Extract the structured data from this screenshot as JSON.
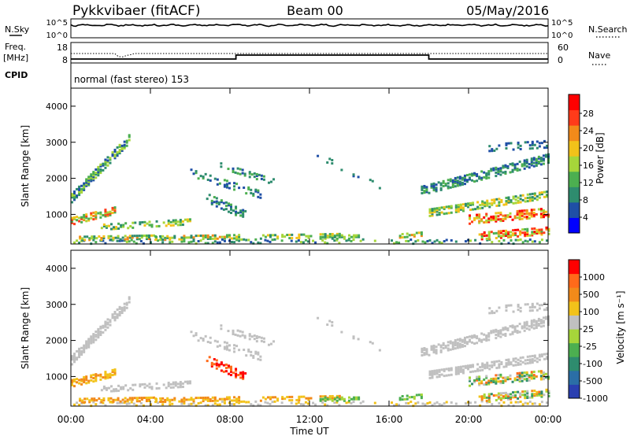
{
  "header": {
    "station": "Pykkvibaer (fitACF)",
    "beam": "Beam 00",
    "date": "05/May/2016"
  },
  "panels": {
    "nsky_label": "N.Sky",
    "nsearch_label": "N.Search",
    "nsky_ticks": [
      "10^5",
      "10^0"
    ],
    "freq_label": "Freq.",
    "freq_unit": "[MHz]",
    "freq_ticks": [
      "18",
      "8"
    ],
    "nave_label": "Nave",
    "nave_ticks": [
      "60",
      "0"
    ],
    "cpid_label": "CPID",
    "cpid_text": "normal (fast stereo) 153"
  },
  "colors": {
    "power": [
      "#0000ff",
      "#1f4fa6",
      "#2e8c6e",
      "#4caf50",
      "#a6d63a",
      "#f2c21a",
      "#f28a1a",
      "#ff3b1a",
      "#ff0000"
    ],
    "velocity": [
      "#2a3fb0",
      "#2b6ea6",
      "#2e8c6e",
      "#4caf50",
      "#a6d63a",
      "#c0c0c0",
      "#f2c21a",
      "#f28a1a",
      "#ff6a1a",
      "#ff0000"
    ]
  },
  "chart_data": [
    {
      "type": "heatmap",
      "name": "power",
      "ylabel": "Slant Range [km]",
      "y_ticks": [
        "1000",
        "2000",
        "3000",
        "4000"
      ],
      "colorbar_label": "Power [dB]",
      "colorbar_ticks": [
        "4",
        "8",
        "12",
        "16",
        "20",
        "24",
        "28"
      ]
    },
    {
      "type": "heatmap",
      "name": "velocity",
      "ylabel": "Slant Range [km]",
      "y_ticks": [
        "1000",
        "2000",
        "3000",
        "4000"
      ],
      "colorbar_label": "Velocity [m s⁻¹]",
      "colorbar_ticks": [
        "1000",
        "500",
        "100",
        "25",
        "-25",
        "-100",
        "-500",
        "-1000"
      ]
    }
  ],
  "x_axis": {
    "label": "Time UT",
    "ticks": [
      "00:00",
      "04:00",
      "08:00",
      "12:00",
      "16:00",
      "20:00",
      "00:00"
    ]
  }
}
